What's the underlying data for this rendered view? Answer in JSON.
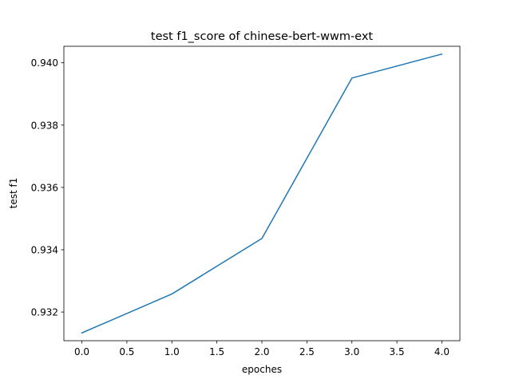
{
  "chart_data": {
    "type": "line",
    "title": "test f1_score of chinese-bert-wwm-ext",
    "xlabel": "epoches",
    "ylabel": "test f1",
    "x": [
      0,
      1,
      2,
      3,
      4
    ],
    "series": [
      {
        "values": [
          0.93133,
          0.93258,
          0.93436,
          0.93951,
          0.94028
        ],
        "color": "#1f77b4"
      }
    ],
    "xlim": [
      -0.2,
      4.2
    ],
    "ylim": [
      0.93108,
      0.94053
    ],
    "xticks": [
      0.0,
      0.5,
      1.0,
      1.5,
      2.0,
      2.5,
      3.0,
      3.5,
      4.0
    ],
    "xtick_labels": [
      "0.0",
      "0.5",
      "1.0",
      "1.5",
      "2.0",
      "2.5",
      "3.0",
      "3.5",
      "4.0"
    ],
    "yticks": [
      0.932,
      0.934,
      0.936,
      0.938,
      0.94
    ],
    "ytick_labels": [
      "0.932",
      "0.934",
      "0.936",
      "0.938",
      "0.940"
    ],
    "grid": false,
    "legend": false
  }
}
